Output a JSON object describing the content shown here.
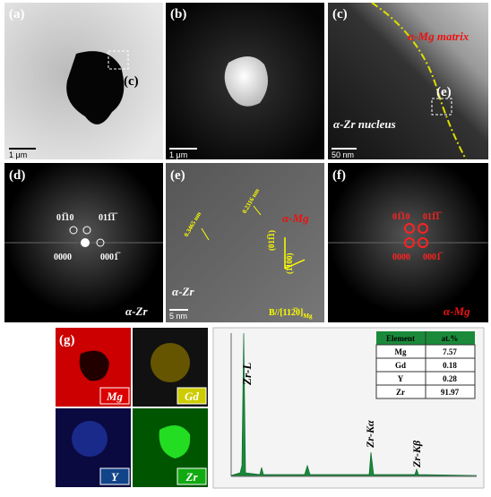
{
  "panels": {
    "a": {
      "label": "(a)",
      "inset_label": "(c)",
      "scale_bar": "1 μm"
    },
    "b": {
      "label": "(b)",
      "scale_bar": "1 μm"
    },
    "c": {
      "label": "(c)",
      "matrix": "α-Mg matrix",
      "nucleus": "α-Zr nucleus",
      "inset_label": "(e)",
      "scale_bar": "50 nm"
    },
    "d": {
      "label": "(d)",
      "phase": "α-Zr",
      "spots": [
        "01̅10",
        "011̅1̅",
        "0000",
        "0001̅"
      ]
    },
    "e": {
      "label": "(e)",
      "phase_mg": "α-Mg",
      "phase_zr": "α-Zr",
      "spacing_1": "0.3465 nm",
      "spacing_2": "0.2316 nm",
      "plane_1": "(011̅1)",
      "plane_2": "(1̅100)",
      "beam": "B//[112̅0]",
      "beam_sub": "Mg",
      "scale_bar": "5 nm"
    },
    "f": {
      "label": "(f)",
      "phase": "α-Mg",
      "spots": [
        "01̅10",
        "011̅1̅",
        "0000",
        "0001̅"
      ]
    },
    "g": {
      "label": "(g)",
      "maps": [
        "Mg",
        "Gd",
        "Y",
        "Zr"
      ],
      "peaks": [
        "Zr-L",
        "Zr-Kα",
        "Zr-Kβ"
      ],
      "table": {
        "header": [
          "Element",
          "at.%"
        ],
        "rows": [
          [
            "Mg",
            "7.57"
          ],
          [
            "Gd",
            "0.18"
          ],
          [
            "Y",
            "0.28"
          ],
          [
            "Zr",
            "91.97"
          ]
        ]
      }
    }
  }
}
